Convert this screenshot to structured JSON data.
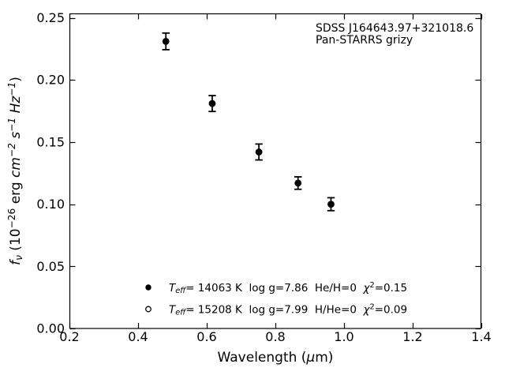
{
  "figure": {
    "background": "#ffffff",
    "foreground": "#000000"
  },
  "chart_data": {
    "type": "scatter",
    "title": "",
    "xlabel": "Wavelength (μm)",
    "ylabel": "f_ν (10⁻²⁶ erg cm⁻² s⁻¹ Hz⁻¹)",
    "xlim": [
      0.2,
      1.4
    ],
    "ylim": [
      0.0,
      0.2535
    ],
    "grid": false,
    "tick_direction": "in",
    "xticks": {
      "values": [
        0.2,
        0.4,
        0.6,
        0.8,
        1.0,
        1.2,
        1.4
      ],
      "labels": [
        "0.2",
        "0.4",
        "0.6",
        "0.8",
        "1.0",
        "1.2",
        "1.4"
      ]
    },
    "yticks": {
      "values": [
        0.0,
        0.05,
        0.1,
        0.15,
        0.2,
        0.25
      ],
      "labels": [
        "0.00",
        "0.05",
        "0.10",
        "0.15",
        "0.20",
        "0.25"
      ]
    },
    "annotations": [
      "SDSS J164643.97+321018.6",
      "Pan-STARRS grizy"
    ],
    "series": [
      {
        "name": "Pan-STARRS grizy photometry",
        "marker": "filled-circle",
        "color": "#000000",
        "points": [
          {
            "x": 0.481,
            "y": 0.231,
            "yerr": 0.0067
          },
          {
            "x": 0.616,
            "y": 0.181,
            "yerr": 0.0064
          },
          {
            "x": 0.752,
            "y": 0.142,
            "yerr": 0.0064
          },
          {
            "x": 0.866,
            "y": 0.117,
            "yerr": 0.005
          },
          {
            "x": 0.962,
            "y": 0.1,
            "yerr": 0.0052
          }
        ]
      }
    ],
    "legend": {
      "position": "lower-center",
      "frame": false,
      "entries": [
        {
          "marker": "filled-circle",
          "label": "T_eff= 14063 K  log g=7.86  He/H=0  χ²=0.15"
        },
        {
          "marker": "open-circle",
          "label": "T_eff= 15208 K  log g=7.99  H/He=0  χ²=0.09"
        }
      ]
    }
  },
  "rich_text": {
    "xlabel_segments": [
      {
        "t": "Wavelength (",
        "s": ""
      },
      {
        "t": "μ",
        "s": "i"
      },
      {
        "t": "m)",
        "s": ""
      }
    ],
    "ylabel_segments": [
      {
        "t": "f",
        "s": "i"
      },
      {
        "t": "ν",
        "s": "sub-i"
      },
      {
        "t": " (10",
        "s": ""
      },
      {
        "t": "−26",
        "s": "sup"
      },
      {
        "t": " erg ",
        "s": ""
      },
      {
        "t": "cm",
        "s": "i"
      },
      {
        "t": "−2",
        "s": "sup-i"
      },
      {
        "t": " ",
        "s": ""
      },
      {
        "t": "s",
        "s": "i"
      },
      {
        "t": "−1",
        "s": "sup-i"
      },
      {
        "t": " ",
        "s": ""
      },
      {
        "t": "Hz",
        "s": "i"
      },
      {
        "t": "−1",
        "s": "sup-i"
      },
      {
        "t": ")",
        "s": ""
      }
    ],
    "legend_rows": [
      [
        {
          "t": "T",
          "s": "i"
        },
        {
          "t": "eff",
          "s": "sub-i"
        },
        {
          "t": "= 14063 K  log g=7.86  He/H=0  ",
          "s": ""
        },
        {
          "t": "χ",
          "s": "i"
        },
        {
          "t": "2",
          "s": "sup"
        },
        {
          "t": "=0.15",
          "s": ""
        }
      ],
      [
        {
          "t": "T",
          "s": "i"
        },
        {
          "t": "eff",
          "s": "sub-i"
        },
        {
          "t": "= 15208 K  log g=7.99  H/He=0  ",
          "s": ""
        },
        {
          "t": "χ",
          "s": "i"
        },
        {
          "t": "2",
          "s": "sup"
        },
        {
          "t": "=0.09",
          "s": ""
        }
      ]
    ]
  }
}
